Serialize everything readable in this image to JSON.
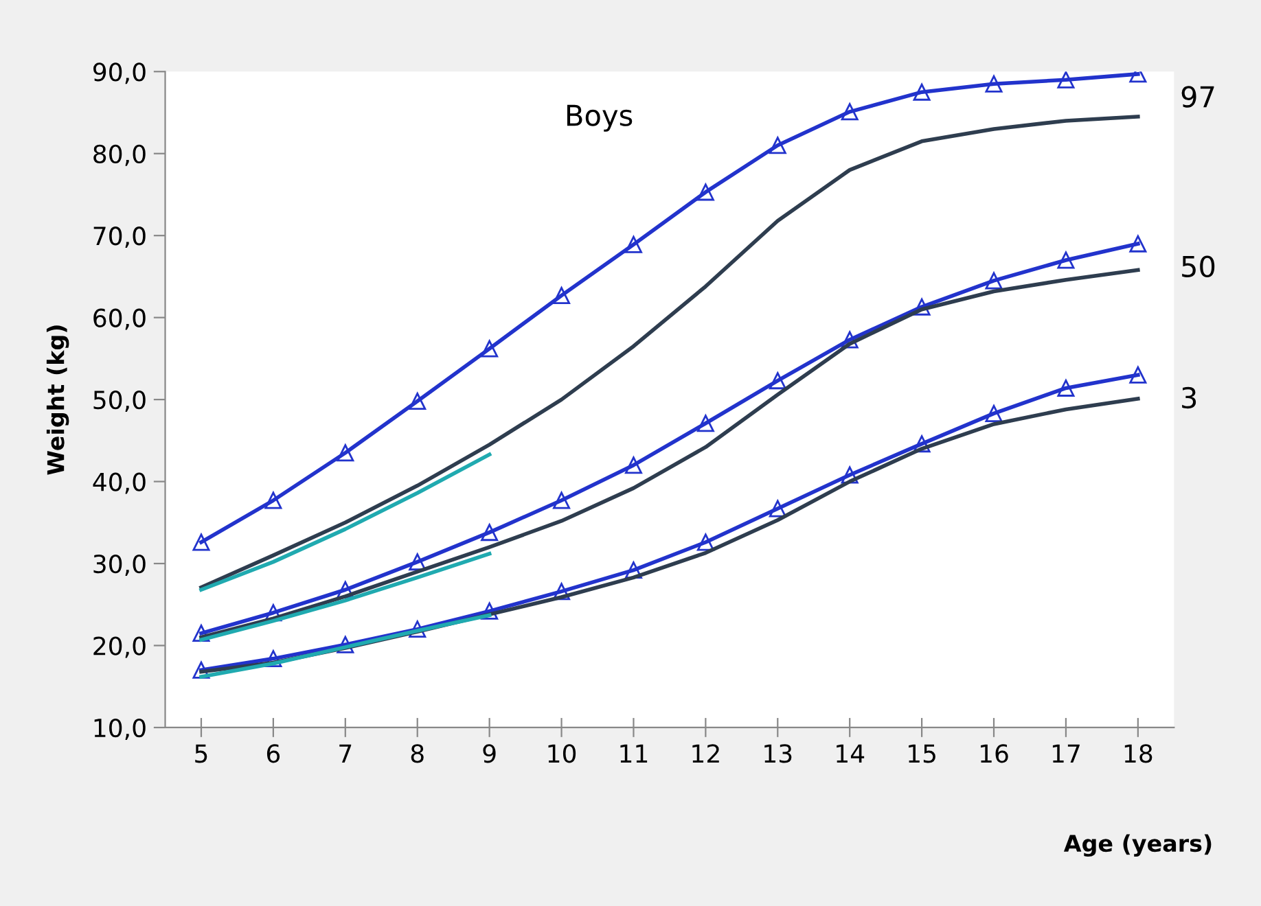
{
  "chart_data": {
    "type": "line",
    "title": "Boys",
    "xlabel": "Age (years)",
    "ylabel": "Weight (kg)",
    "categories": [
      "5",
      "6",
      "7",
      "8",
      "9",
      "10",
      "11",
      "12",
      "13",
      "14",
      "15",
      "16",
      "17",
      "18"
    ],
    "ylim": [
      10,
      90
    ],
    "yticks": [
      {
        "value": 10,
        "label": "10,0"
      },
      {
        "value": 20,
        "label": "20,0"
      },
      {
        "value": 30,
        "label": "30,0"
      },
      {
        "value": 40,
        "label": "40,0"
      },
      {
        "value": 50,
        "label": "50,0"
      },
      {
        "value": 60,
        "label": "60,0"
      },
      {
        "value": 70,
        "label": "70,0"
      },
      {
        "value": 80,
        "label": "80,0"
      },
      {
        "value": 90,
        "label": "90,0"
      }
    ],
    "grid": false,
    "legend": false,
    "line_style": "solid",
    "series": [
      {
        "color": "#2233cc",
        "marker": "triangle",
        "values": [
          32.6,
          37.7,
          43.5,
          49.8,
          56.2,
          62.7,
          68.9,
          75.3,
          81.0,
          85.1,
          87.5,
          88.5,
          89.0,
          89.7
        ]
      },
      {
        "color": "#2e3d4f",
        "marker": "none",
        "values": [
          27.1,
          31.0,
          35.0,
          39.5,
          44.5,
          50.0,
          56.5,
          63.8,
          71.8,
          78.0,
          81.5,
          83.0,
          84.0,
          84.5
        ]
      },
      {
        "color": "#20aab0",
        "marker": "none",
        "values": [
          26.8,
          30.2,
          34.2,
          38.6,
          43.3,
          null,
          null,
          null,
          null,
          null,
          null,
          null,
          null,
          null
        ]
      },
      {
        "color": "#2233cc",
        "marker": "triangle",
        "values": [
          21.5,
          24.0,
          26.8,
          30.2,
          33.8,
          37.7,
          42.0,
          47.1,
          52.3,
          57.3,
          61.3,
          64.5,
          67.0,
          69.0
        ]
      },
      {
        "color": "#2e3d4f",
        "marker": "none",
        "values": [
          21.0,
          23.3,
          26.0,
          29.0,
          32.0,
          35.2,
          39.2,
          44.2,
          50.6,
          56.8,
          61.0,
          63.2,
          64.6,
          65.8
        ]
      },
      {
        "color": "#20aab0",
        "marker": "none",
        "values": [
          20.7,
          23.0,
          25.5,
          28.3,
          31.2,
          null,
          null,
          null,
          null,
          null,
          null,
          null,
          null,
          null
        ]
      },
      {
        "color": "#2233cc",
        "marker": "triangle",
        "values": [
          17.0,
          18.4,
          20.1,
          22.0,
          24.2,
          26.6,
          29.2,
          32.6,
          36.7,
          40.8,
          44.6,
          48.3,
          51.4,
          53.0
        ]
      },
      {
        "color": "#2e3d4f",
        "marker": "none",
        "values": [
          16.8,
          17.9,
          19.7,
          21.7,
          23.8,
          25.9,
          28.3,
          31.3,
          35.3,
          40.0,
          44.0,
          47.0,
          48.8,
          50.1
        ]
      },
      {
        "color": "#20aab0",
        "marker": "none",
        "values": [
          16.2,
          17.8,
          19.8,
          21.8,
          23.7,
          null,
          null,
          null,
          null,
          null,
          null,
          null,
          null,
          null
        ]
      }
    ],
    "annotations": [
      {
        "text": "97",
        "x": "18",
        "y": 89.7
      },
      {
        "text": "50",
        "x": "18",
        "y": 69.0
      },
      {
        "text": "3",
        "x": "18",
        "y": 53.0
      }
    ]
  }
}
